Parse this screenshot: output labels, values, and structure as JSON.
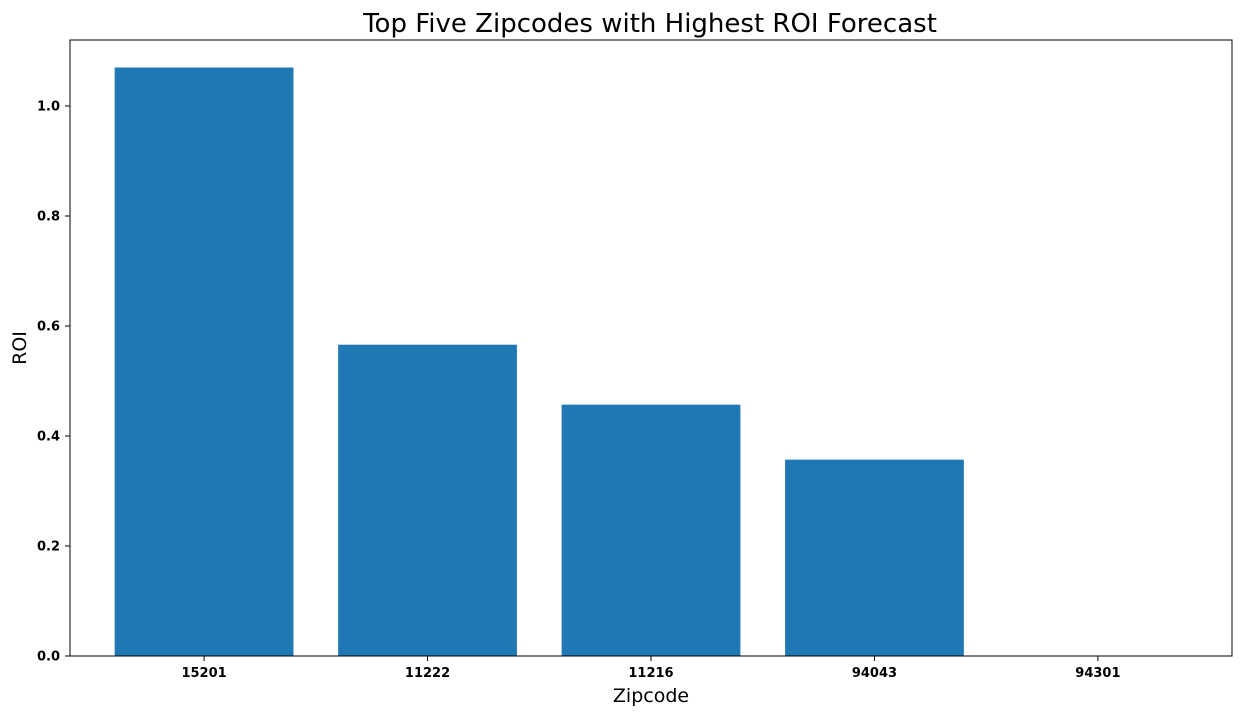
{
  "chart_data": {
    "type": "bar",
    "title": "Top Five Zipcodes with Highest ROI Forecast",
    "xlabel": "Zipcode",
    "ylabel": "ROI",
    "categories": [
      "15201",
      "11222",
      "11216",
      "94043",
      "94301"
    ],
    "values": [
      1.07,
      0.566,
      0.457,
      0.357,
      0.0
    ],
    "ylim": [
      0,
      1.12
    ],
    "yticks": [
      0.0,
      0.2,
      0.4,
      0.6,
      0.8,
      1.0
    ],
    "ytick_labels": [
      "0.0",
      "0.2",
      "0.4",
      "0.6",
      "0.8",
      "1.0"
    ],
    "grid": false,
    "bar_color": "#1f77b4"
  }
}
